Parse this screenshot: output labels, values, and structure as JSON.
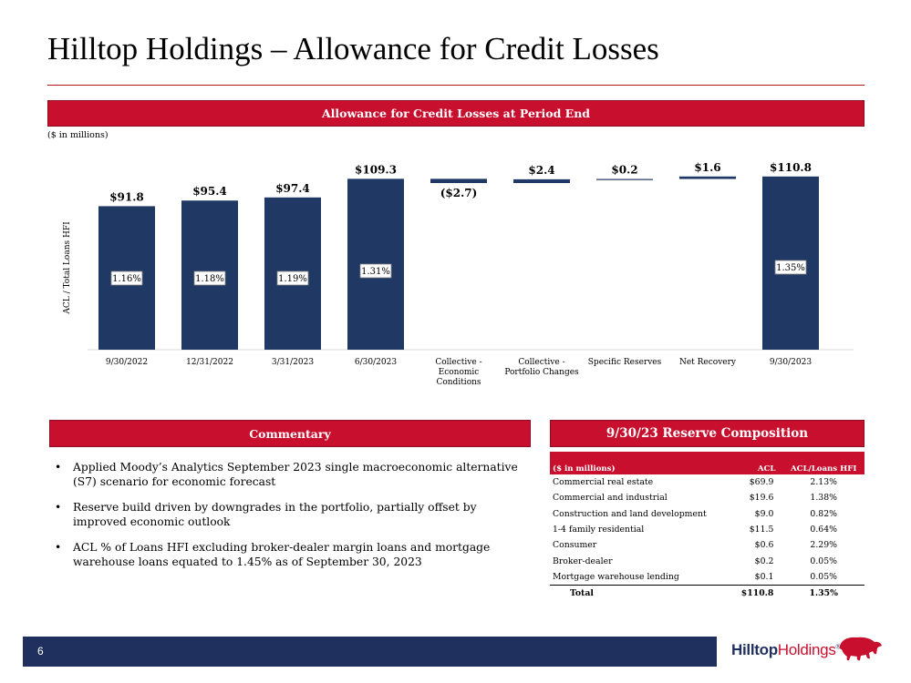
{
  "title": "Hilltop Holdings – Allowance for Credit Losses",
  "chart_banner": "Allowance for Credit Losses at Period End",
  "units_note": "($ in millions)",
  "chart_data": {
    "type": "bar",
    "subtype": "waterfall",
    "title": "Allowance for Credit Losses at Period End",
    "ylabel": "ACL / Total Loans HFI",
    "xlabel": "",
    "ylim": [
      0,
      120
    ],
    "categories": [
      "9/30/2022",
      "12/31/2022",
      "3/31/2023",
      "6/30/2023",
      "Collective - Economic Conditions",
      "Collective - Portfolio Changes",
      "Specific Reserves",
      "Net Recovery",
      "9/30/2023"
    ],
    "category_lines": [
      [
        "9/30/2022"
      ],
      [
        "12/31/2022"
      ],
      [
        "3/31/2023"
      ],
      [
        "6/30/2023"
      ],
      [
        "Collective -",
        "Economic",
        "Conditions"
      ],
      [
        "Collective -",
        "Portfolio Changes"
      ],
      [
        "Specific Reserves"
      ],
      [
        "Net Recovery"
      ],
      [
        "9/30/2023"
      ]
    ],
    "values": [
      91.8,
      95.4,
      97.4,
      109.3,
      -2.7,
      2.4,
      0.2,
      1.6,
      110.8
    ],
    "bar_kind": [
      "total",
      "total",
      "total",
      "total",
      "delta",
      "delta",
      "delta",
      "delta",
      "total"
    ],
    "value_labels": [
      "$91.8",
      "$95.4",
      "$97.4",
      "$109.3",
      "($2.7)",
      "$2.4",
      "$0.2",
      "$1.6",
      "$110.8"
    ],
    "ratio_labels": [
      "1.16%",
      "1.18%",
      "1.19%",
      "1.31%",
      null,
      null,
      null,
      null,
      "1.35%"
    ]
  },
  "commentary": {
    "heading": "Commentary",
    "bullet_symbol": "•",
    "bullets": [
      "Applied Moody’s Analytics September 2023 single macroeconomic alternative (S7) scenario for economic forecast",
      "Reserve build driven by downgrades in the portfolio, partially offset by improved economic outlook",
      "ACL % of Loans HFI excluding broker-dealer margin loans and mortgage warehouse loans equated to 1.45% as of September 30, 2023"
    ]
  },
  "reserve": {
    "heading": "9/30/23 Reserve Composition",
    "columns": [
      "($ in millions)",
      "ACL",
      "ACL/Loans HFI"
    ],
    "rows": [
      [
        "Commercial real estate",
        "$69.9",
        "2.13%"
      ],
      [
        "Commercial and industrial",
        "$19.6",
        "1.38%"
      ],
      [
        "Construction and land development",
        "$9.0",
        "0.82%"
      ],
      [
        "1-4 family residential",
        "$11.5",
        "0.64%"
      ],
      [
        "Consumer",
        "$0.6",
        "2.29%"
      ],
      [
        "Broker-dealer",
        "$0.2",
        "0.05%"
      ],
      [
        "Mortgage warehouse lending",
        "$0.1",
        "0.05%"
      ]
    ],
    "total": [
      "Total",
      "$110.8",
      "1.35%"
    ]
  },
  "footer": {
    "page_number": "6"
  },
  "logo": {
    "bold": "Hilltop",
    "rest": "Holdings",
    "mark": "®"
  },
  "colors": {
    "accent": "#c8102e",
    "navy": "#1f3864",
    "footer": "#1f2f5e"
  }
}
